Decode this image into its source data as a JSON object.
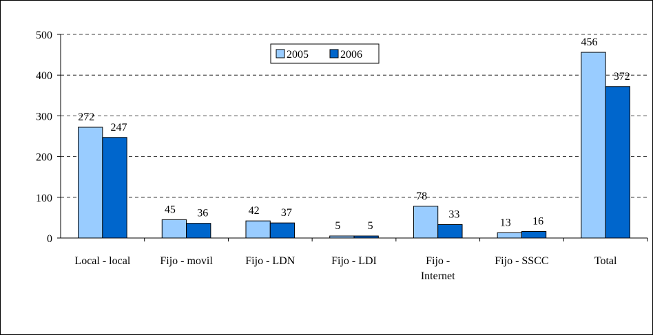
{
  "chart_data": {
    "type": "bar",
    "categories": [
      "Local - local",
      "Fijo - movil",
      "Fijo - LDN",
      "Fijo - LDI",
      "Fijo - Internet",
      "Fijo - SSCC",
      "Total"
    ],
    "series": [
      {
        "name": "2005",
        "color": "#99ccff",
        "values": [
          272,
          45,
          42,
          5,
          78,
          13,
          456
        ]
      },
      {
        "name": "2006",
        "color": "#0066cc",
        "values": [
          247,
          36,
          37,
          5,
          33,
          16,
          372
        ]
      }
    ],
    "ylim": [
      0,
      500
    ],
    "yticks": [
      0,
      100,
      200,
      300,
      400,
      500
    ],
    "grid": true,
    "legend": "top"
  }
}
